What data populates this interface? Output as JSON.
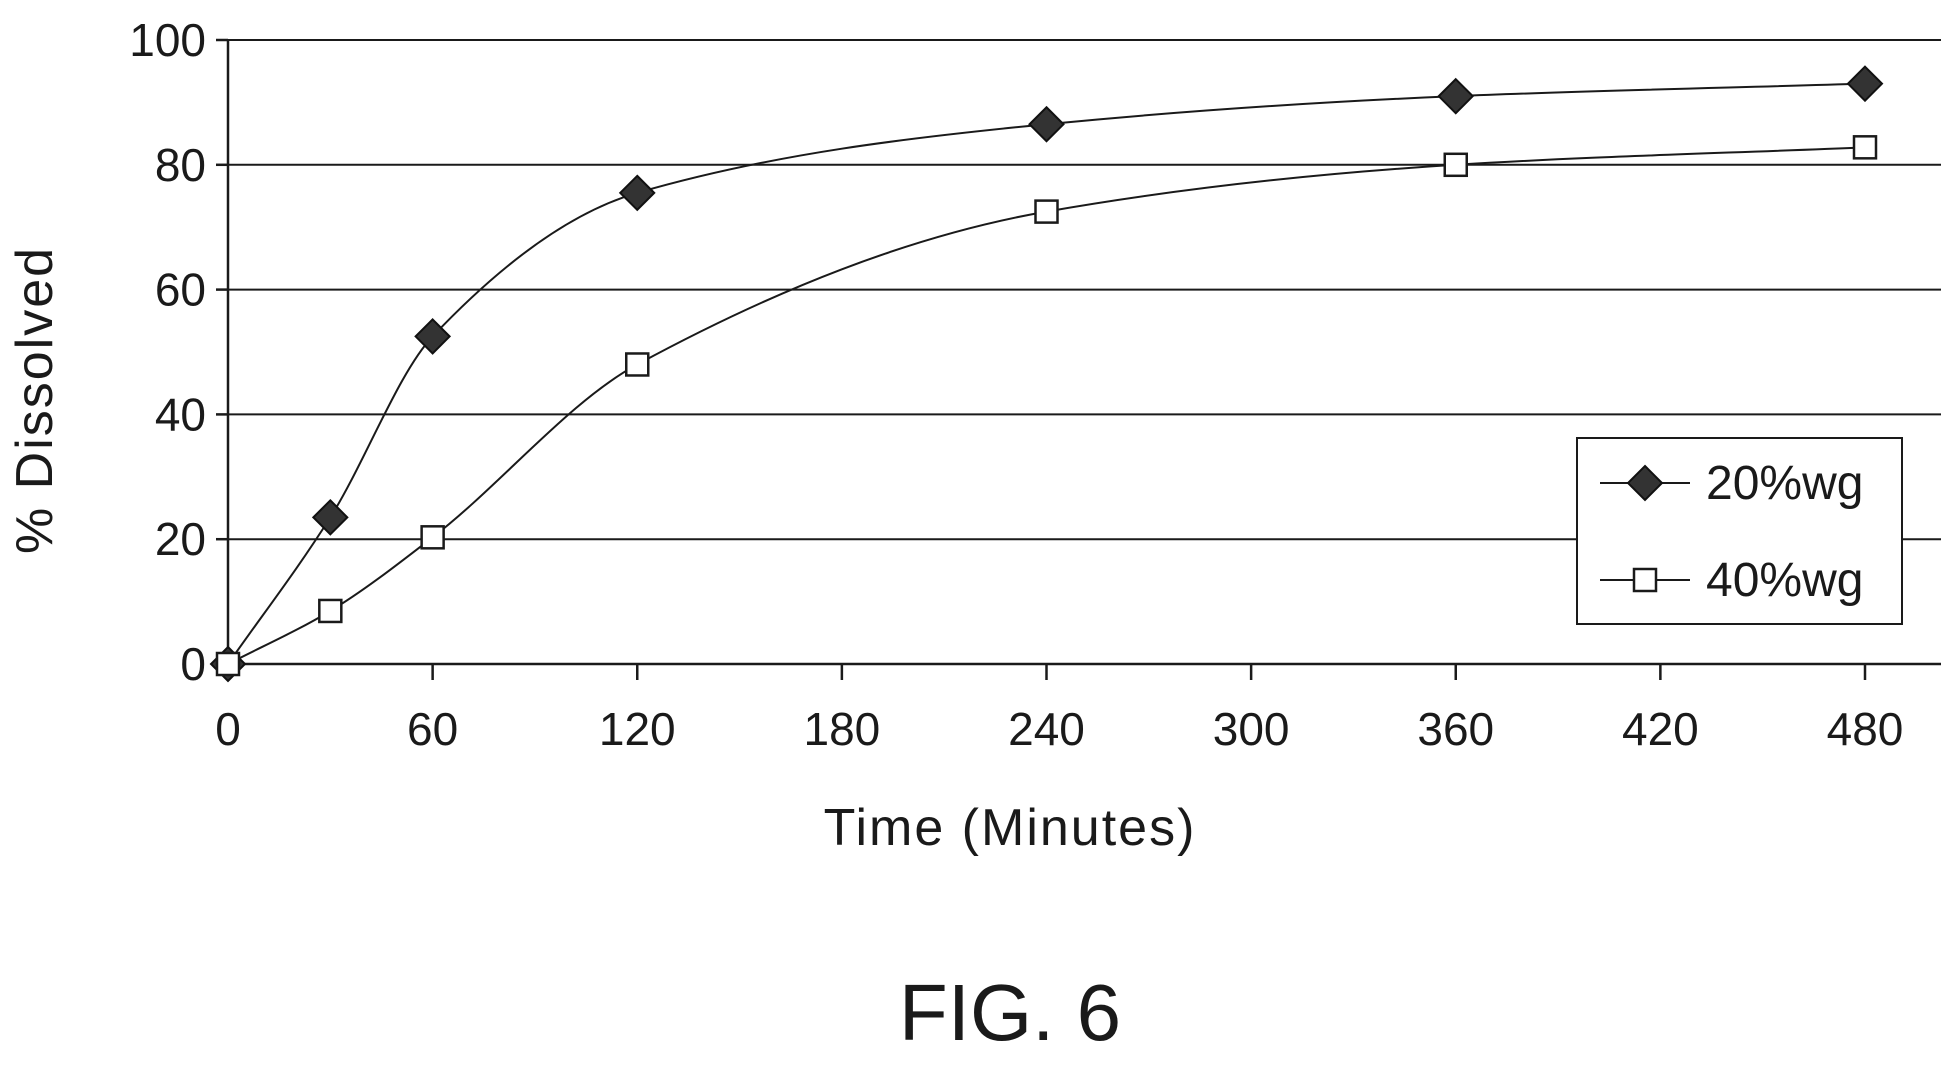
{
  "chart_data": {
    "type": "line",
    "xlabel": "Time (Minutes)",
    "ylabel": "% Dissolved",
    "xlim": [
      0,
      480
    ],
    "ylim": [
      0,
      100
    ],
    "xticks": [
      0,
      60,
      120,
      180,
      240,
      300,
      360,
      420,
      480
    ],
    "yticks": [
      0,
      20,
      40,
      60,
      80,
      100
    ],
    "grid": "horizontal",
    "legend_position": "right",
    "series": [
      {
        "name": "20%wg",
        "marker": "filled-diamond",
        "color": "#333333",
        "x": [
          0,
          30,
          60,
          120,
          240,
          360,
          480
        ],
        "y": [
          0,
          23.5,
          52.5,
          75.5,
          86.5,
          91,
          93
        ]
      },
      {
        "name": "40%wg",
        "marker": "open-square",
        "color": "#ffffff",
        "x": [
          0,
          30,
          60,
          120,
          240,
          360,
          480
        ],
        "y": [
          0,
          8.5,
          20.3,
          48,
          72.5,
          80,
          82.8
        ]
      }
    ]
  },
  "figure_label": "FIG. 6"
}
